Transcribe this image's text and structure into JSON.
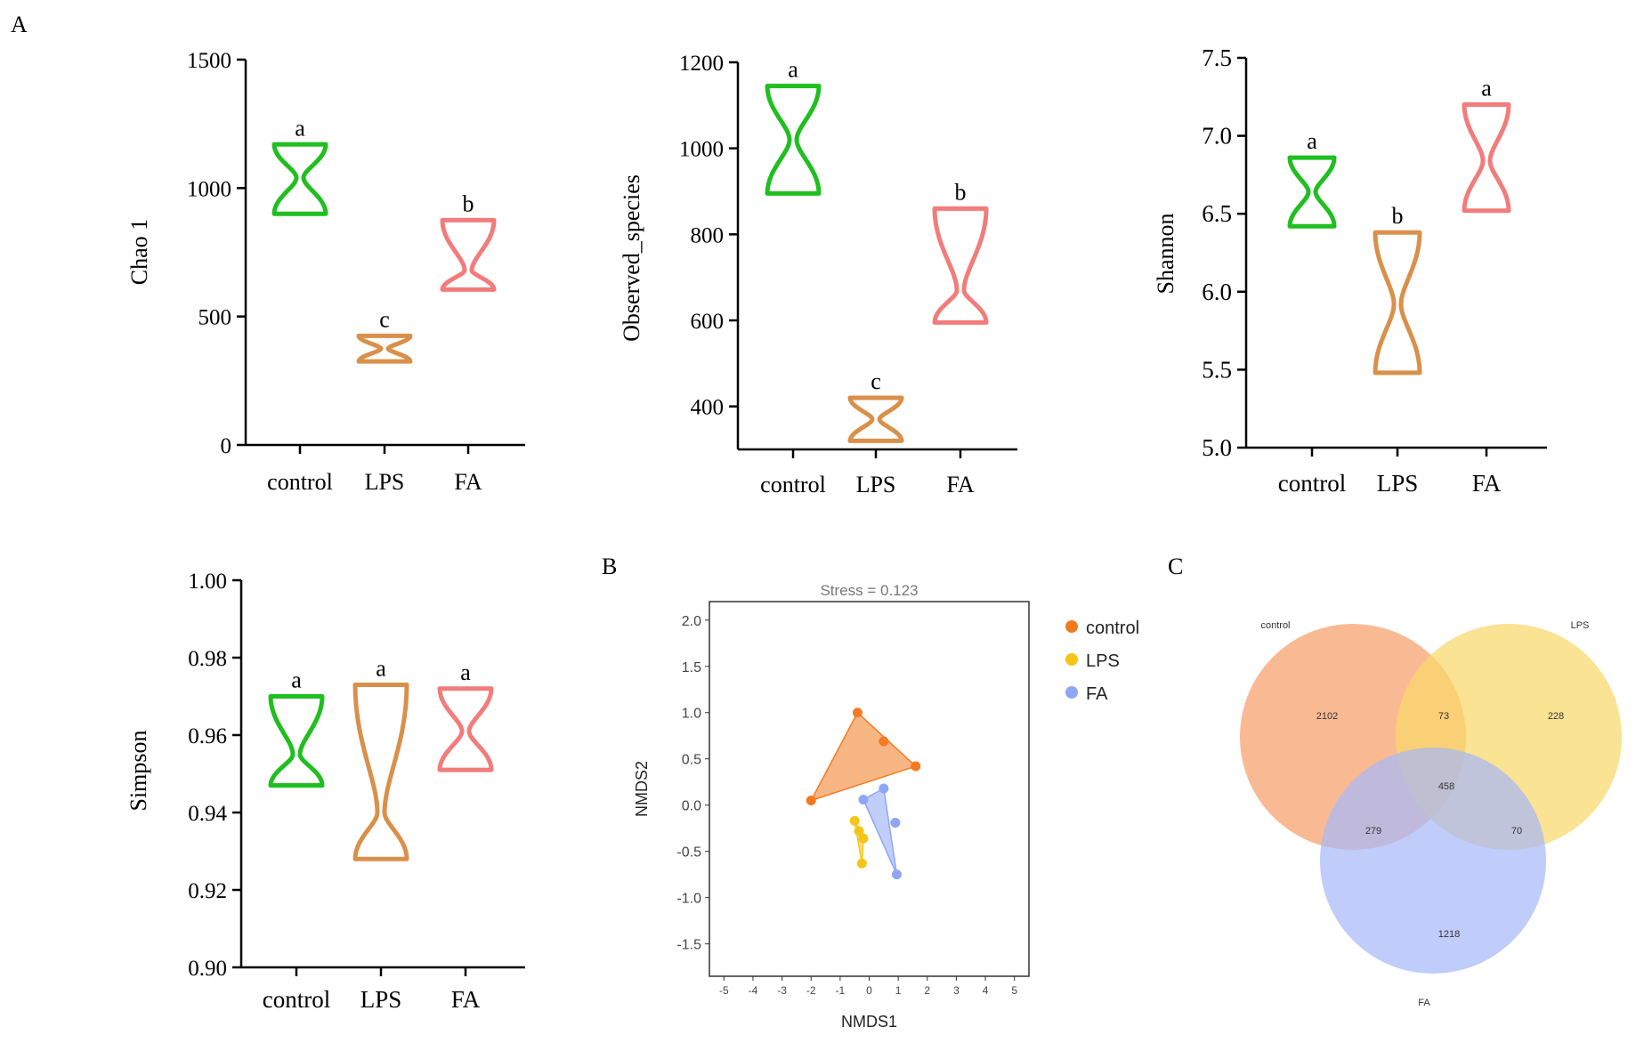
{
  "panel_labels": {
    "a": "A",
    "b": "B",
    "c": "C"
  },
  "colors": {
    "control": "#1fbf1f",
    "LPS": "#d9904a",
    "FA": "#f27c7c",
    "axis": "#000000",
    "nmds_control": "#f47a20",
    "nmds_lps": "#f5c518",
    "nmds_fa": "#8fa6f5",
    "venn_control": "#f7a06a",
    "venn_lps": "#f8d86a",
    "venn_fa": "#a8b8f7"
  },
  "chart_data": [
    {
      "type": "violin",
      "ylabel": "Chao 1",
      "categories": [
        "control",
        "LPS",
        "FA"
      ],
      "ylim": [
        0,
        1500
      ],
      "yticks": [
        0,
        500,
        1000,
        1500
      ],
      "tick_labels": [
        "0",
        "500",
        "1000",
        "1500"
      ],
      "series": [
        {
          "name": "control",
          "min": 900,
          "max": 1170,
          "waist": 1040,
          "letter": "a"
        },
        {
          "name": "LPS",
          "min": 325,
          "max": 425,
          "waist": 375,
          "letter": "c"
        },
        {
          "name": "FA",
          "min": 605,
          "max": 875,
          "waist": 680,
          "letter": "b"
        }
      ]
    },
    {
      "type": "violin",
      "ylabel": "Observed_species",
      "categories": [
        "control",
        "LPS",
        "FA"
      ],
      "ylim": [
        300,
        1200
      ],
      "yticks": [
        400,
        600,
        800,
        1000,
        1200
      ],
      "tick_labels": [
        "400",
        "600",
        "800",
        "1000",
        "1200"
      ],
      "series": [
        {
          "name": "control",
          "min": 895,
          "max": 1145,
          "waist": 1020,
          "letter": "a"
        },
        {
          "name": "LPS",
          "min": 320,
          "max": 420,
          "waist": 370,
          "letter": "c"
        },
        {
          "name": "FA",
          "min": 595,
          "max": 860,
          "waist": 670,
          "letter": "b"
        }
      ]
    },
    {
      "type": "violin",
      "ylabel": "Shannon",
      "categories": [
        "control",
        "LPS",
        "FA"
      ],
      "ylim": [
        5.0,
        7.5
      ],
      "yticks": [
        5.0,
        5.5,
        6.0,
        6.5,
        7.0,
        7.5
      ],
      "tick_labels": [
        "5.0",
        "5.5",
        "6.0",
        "6.5",
        "7.0",
        "7.5"
      ],
      "series": [
        {
          "name": "control",
          "min": 6.42,
          "max": 6.86,
          "waist": 6.64,
          "letter": "a"
        },
        {
          "name": "LPS",
          "min": 5.48,
          "max": 6.38,
          "waist": 5.92,
          "letter": "b"
        },
        {
          "name": "FA",
          "min": 6.52,
          "max": 7.2,
          "waist": 6.84,
          "letter": "a"
        }
      ]
    },
    {
      "type": "violin",
      "ylabel": "Simpson",
      "categories": [
        "control",
        "LPS",
        "FA"
      ],
      "ylim": [
        0.9,
        1.0
      ],
      "yticks": [
        0.9,
        0.92,
        0.94,
        0.96,
        0.98,
        1.0
      ],
      "tick_labels": [
        "0.90",
        "0.92",
        "0.94",
        "0.96",
        "0.98",
        "1.00"
      ],
      "series": [
        {
          "name": "control",
          "min": 0.947,
          "max": 0.97,
          "waist": 0.955,
          "letter": "a"
        },
        {
          "name": "LPS",
          "min": 0.928,
          "max": 0.973,
          "waist": 0.94,
          "letter": "a"
        },
        {
          "name": "FA",
          "min": 0.951,
          "max": 0.972,
          "waist": 0.961,
          "letter": "a"
        }
      ]
    },
    {
      "type": "scatter",
      "title": "Stress = 0.123",
      "xlabel": "NMDS1",
      "ylabel": "NMDS2",
      "xlim": [
        -5.5,
        5.5
      ],
      "ylim": [
        -1.85,
        2.2
      ],
      "xticks": [
        -5,
        -4,
        -3,
        -2,
        -1,
        0,
        1,
        2,
        3,
        4,
        5
      ],
      "x_tick_labels": [
        "-5",
        "-4",
        "-3",
        "-2",
        "-1",
        "0",
        "1",
        "2",
        "3",
        "4",
        "5"
      ],
      "yticks": [
        -1.5,
        -1.0,
        -0.5,
        0.0,
        0.5,
        1.0,
        1.5,
        2.0
      ],
      "y_tick_labels": [
        "-1.5",
        "-1.0",
        "-0.5",
        "0.0",
        "0.5",
        "1.0",
        "1.5",
        "2.0"
      ],
      "legend": [
        "control",
        "LPS",
        "FA"
      ],
      "series": [
        {
          "name": "control",
          "x": [
            -2.0,
            -0.4,
            0.5,
            1.6
          ],
          "y": [
            0.05,
            1.0,
            0.69,
            0.42
          ],
          "hull": [
            [
              -2.0,
              0.05
            ],
            [
              -0.4,
              1.0
            ],
            [
              1.6,
              0.42
            ]
          ]
        },
        {
          "name": "LPS",
          "x": [
            -0.5,
            -0.35,
            -0.2,
            -0.25
          ],
          "y": [
            -0.17,
            -0.28,
            -0.36,
            -0.63
          ],
          "hull": [
            [
              -0.5,
              -0.17
            ],
            [
              -0.2,
              -0.36
            ],
            [
              -0.25,
              -0.63
            ]
          ]
        },
        {
          "name": "FA",
          "x": [
            -0.2,
            0.5,
            0.9,
            0.95
          ],
          "y": [
            0.06,
            0.18,
            -0.19,
            -0.75
          ],
          "hull": [
            [
              -0.2,
              0.06
            ],
            [
              0.5,
              0.18
            ],
            [
              0.95,
              -0.75
            ]
          ]
        }
      ]
    },
    {
      "type": "venn",
      "sets": [
        "control",
        "LPS",
        "FA"
      ],
      "regions": [
        {
          "sets": [
            "control"
          ],
          "value": 2102
        },
        {
          "sets": [
            "LPS"
          ],
          "value": 228
        },
        {
          "sets": [
            "FA"
          ],
          "value": 1218
        },
        {
          "sets": [
            "control",
            "LPS"
          ],
          "value": 73
        },
        {
          "sets": [
            "control",
            "FA"
          ],
          "value": 279
        },
        {
          "sets": [
            "LPS",
            "FA"
          ],
          "value": 70
        },
        {
          "sets": [
            "control",
            "LPS",
            "FA"
          ],
          "value": 458
        }
      ]
    }
  ]
}
